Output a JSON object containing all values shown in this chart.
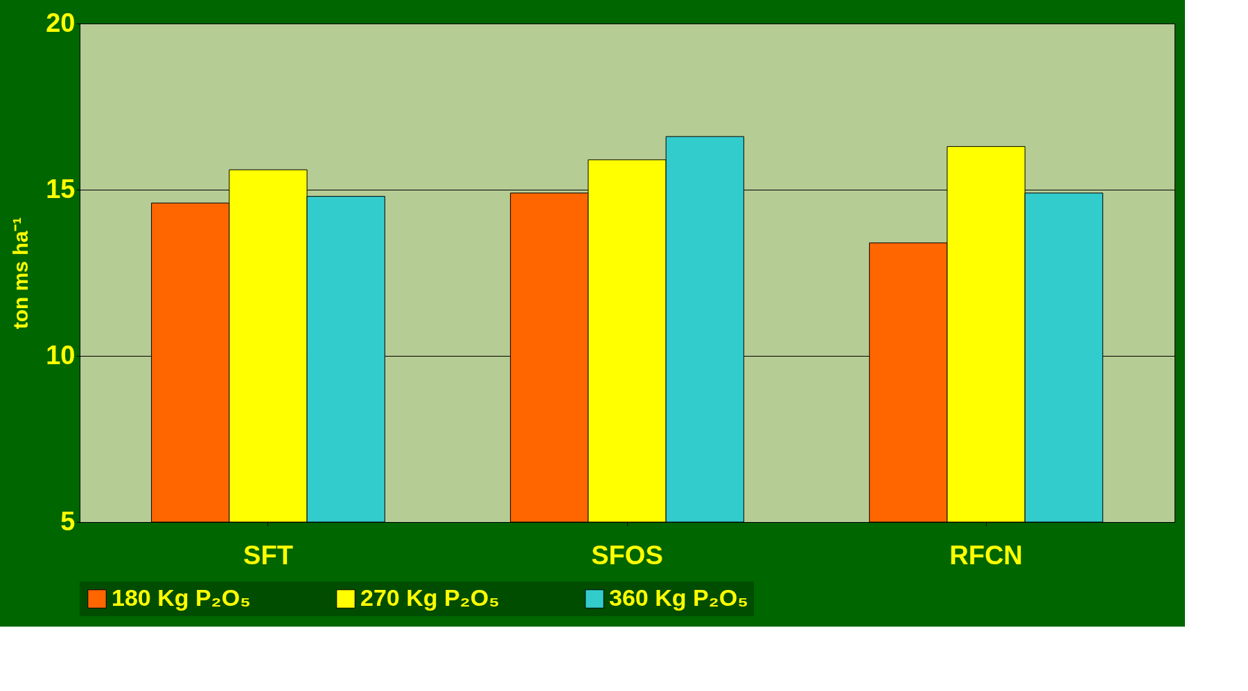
{
  "chart_data": {
    "type": "bar",
    "ylabel": "ton ms ha⁻¹",
    "categories": [
      "SFT",
      "SFOS",
      "RFCN"
    ],
    "series": [
      {
        "name": "180 Kg P₂O₅",
        "color": "#ff6600",
        "values": [
          14.6,
          14.9,
          13.4
        ]
      },
      {
        "name": "270 Kg P₂O₅",
        "color": "#ffff00",
        "values": [
          15.6,
          15.9,
          16.3
        ]
      },
      {
        "name": "360 Kg P₂O₅",
        "color": "#33cccc",
        "values": [
          14.8,
          16.6,
          14.9
        ]
      }
    ],
    "ylim": [
      5,
      20
    ],
    "yticks": [
      5,
      10,
      15,
      20
    ],
    "grid": "y",
    "legend": "bottom"
  }
}
